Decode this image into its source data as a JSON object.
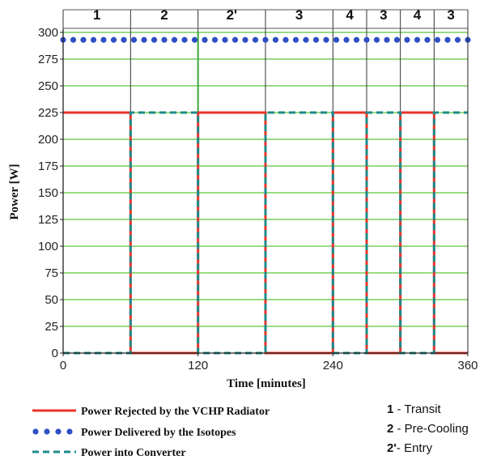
{
  "chart_data": {
    "type": "line",
    "xlabel": "Time [minutes]",
    "ylabel": "Power [W]",
    "xlim": [
      0,
      360
    ],
    "ylim": [
      0,
      300
    ],
    "x_ticks": [
      0,
      120,
      240,
      360
    ],
    "y_ticks": [
      0,
      25,
      50,
      75,
      100,
      125,
      150,
      175,
      200,
      225,
      250,
      275,
      300
    ],
    "grid": "horizontal",
    "phases": [
      {
        "label": "1",
        "start": 0,
        "end": 60
      },
      {
        "label": "2",
        "start": 60,
        "end": 120
      },
      {
        "label": "2'",
        "start": 120,
        "end": 180
      },
      {
        "label": "3",
        "start": 180,
        "end": 240
      },
      {
        "label": "4",
        "start": 240,
        "end": 270
      },
      {
        "label": "3",
        "start": 270,
        "end": 300
      },
      {
        "label": "4",
        "start": 300,
        "end": 330
      },
      {
        "label": "3",
        "start": 330,
        "end": 360
      }
    ],
    "series": [
      {
        "name": "Power Rejected by the VCHP Radiator",
        "color": "#e8332a",
        "style": "solid",
        "x": [
          0,
          60,
          60,
          120,
          120,
          180,
          180,
          240,
          240,
          270,
          270,
          300,
          300,
          330,
          330,
          360
        ],
        "y": [
          225,
          225,
          0,
          0,
          225,
          225,
          0,
          0,
          225,
          225,
          0,
          0,
          225,
          225,
          0,
          0
        ]
      },
      {
        "name": "Power Delivered by the Isotopes",
        "color": "#2f4fc4",
        "style": "dots",
        "x": [
          0,
          360
        ],
        "y": [
          293,
          293
        ]
      },
      {
        "name": "Power into Converter",
        "color": "#1f8a8a",
        "style": "dashed",
        "x": [
          0,
          60,
          60,
          120,
          120,
          180,
          180,
          240,
          240,
          270,
          270,
          300,
          300,
          330,
          330,
          360
        ],
        "y": [
          0,
          0,
          225,
          225,
          0,
          0,
          225,
          225,
          0,
          0,
          225,
          225,
          0,
          0,
          225,
          225
        ]
      }
    ]
  },
  "key": [
    {
      "num": "1",
      "text": " - Transit"
    },
    {
      "num": "2",
      "text": " - Pre-Cooling"
    },
    {
      "num": "2'",
      "text": "- Entry"
    }
  ]
}
